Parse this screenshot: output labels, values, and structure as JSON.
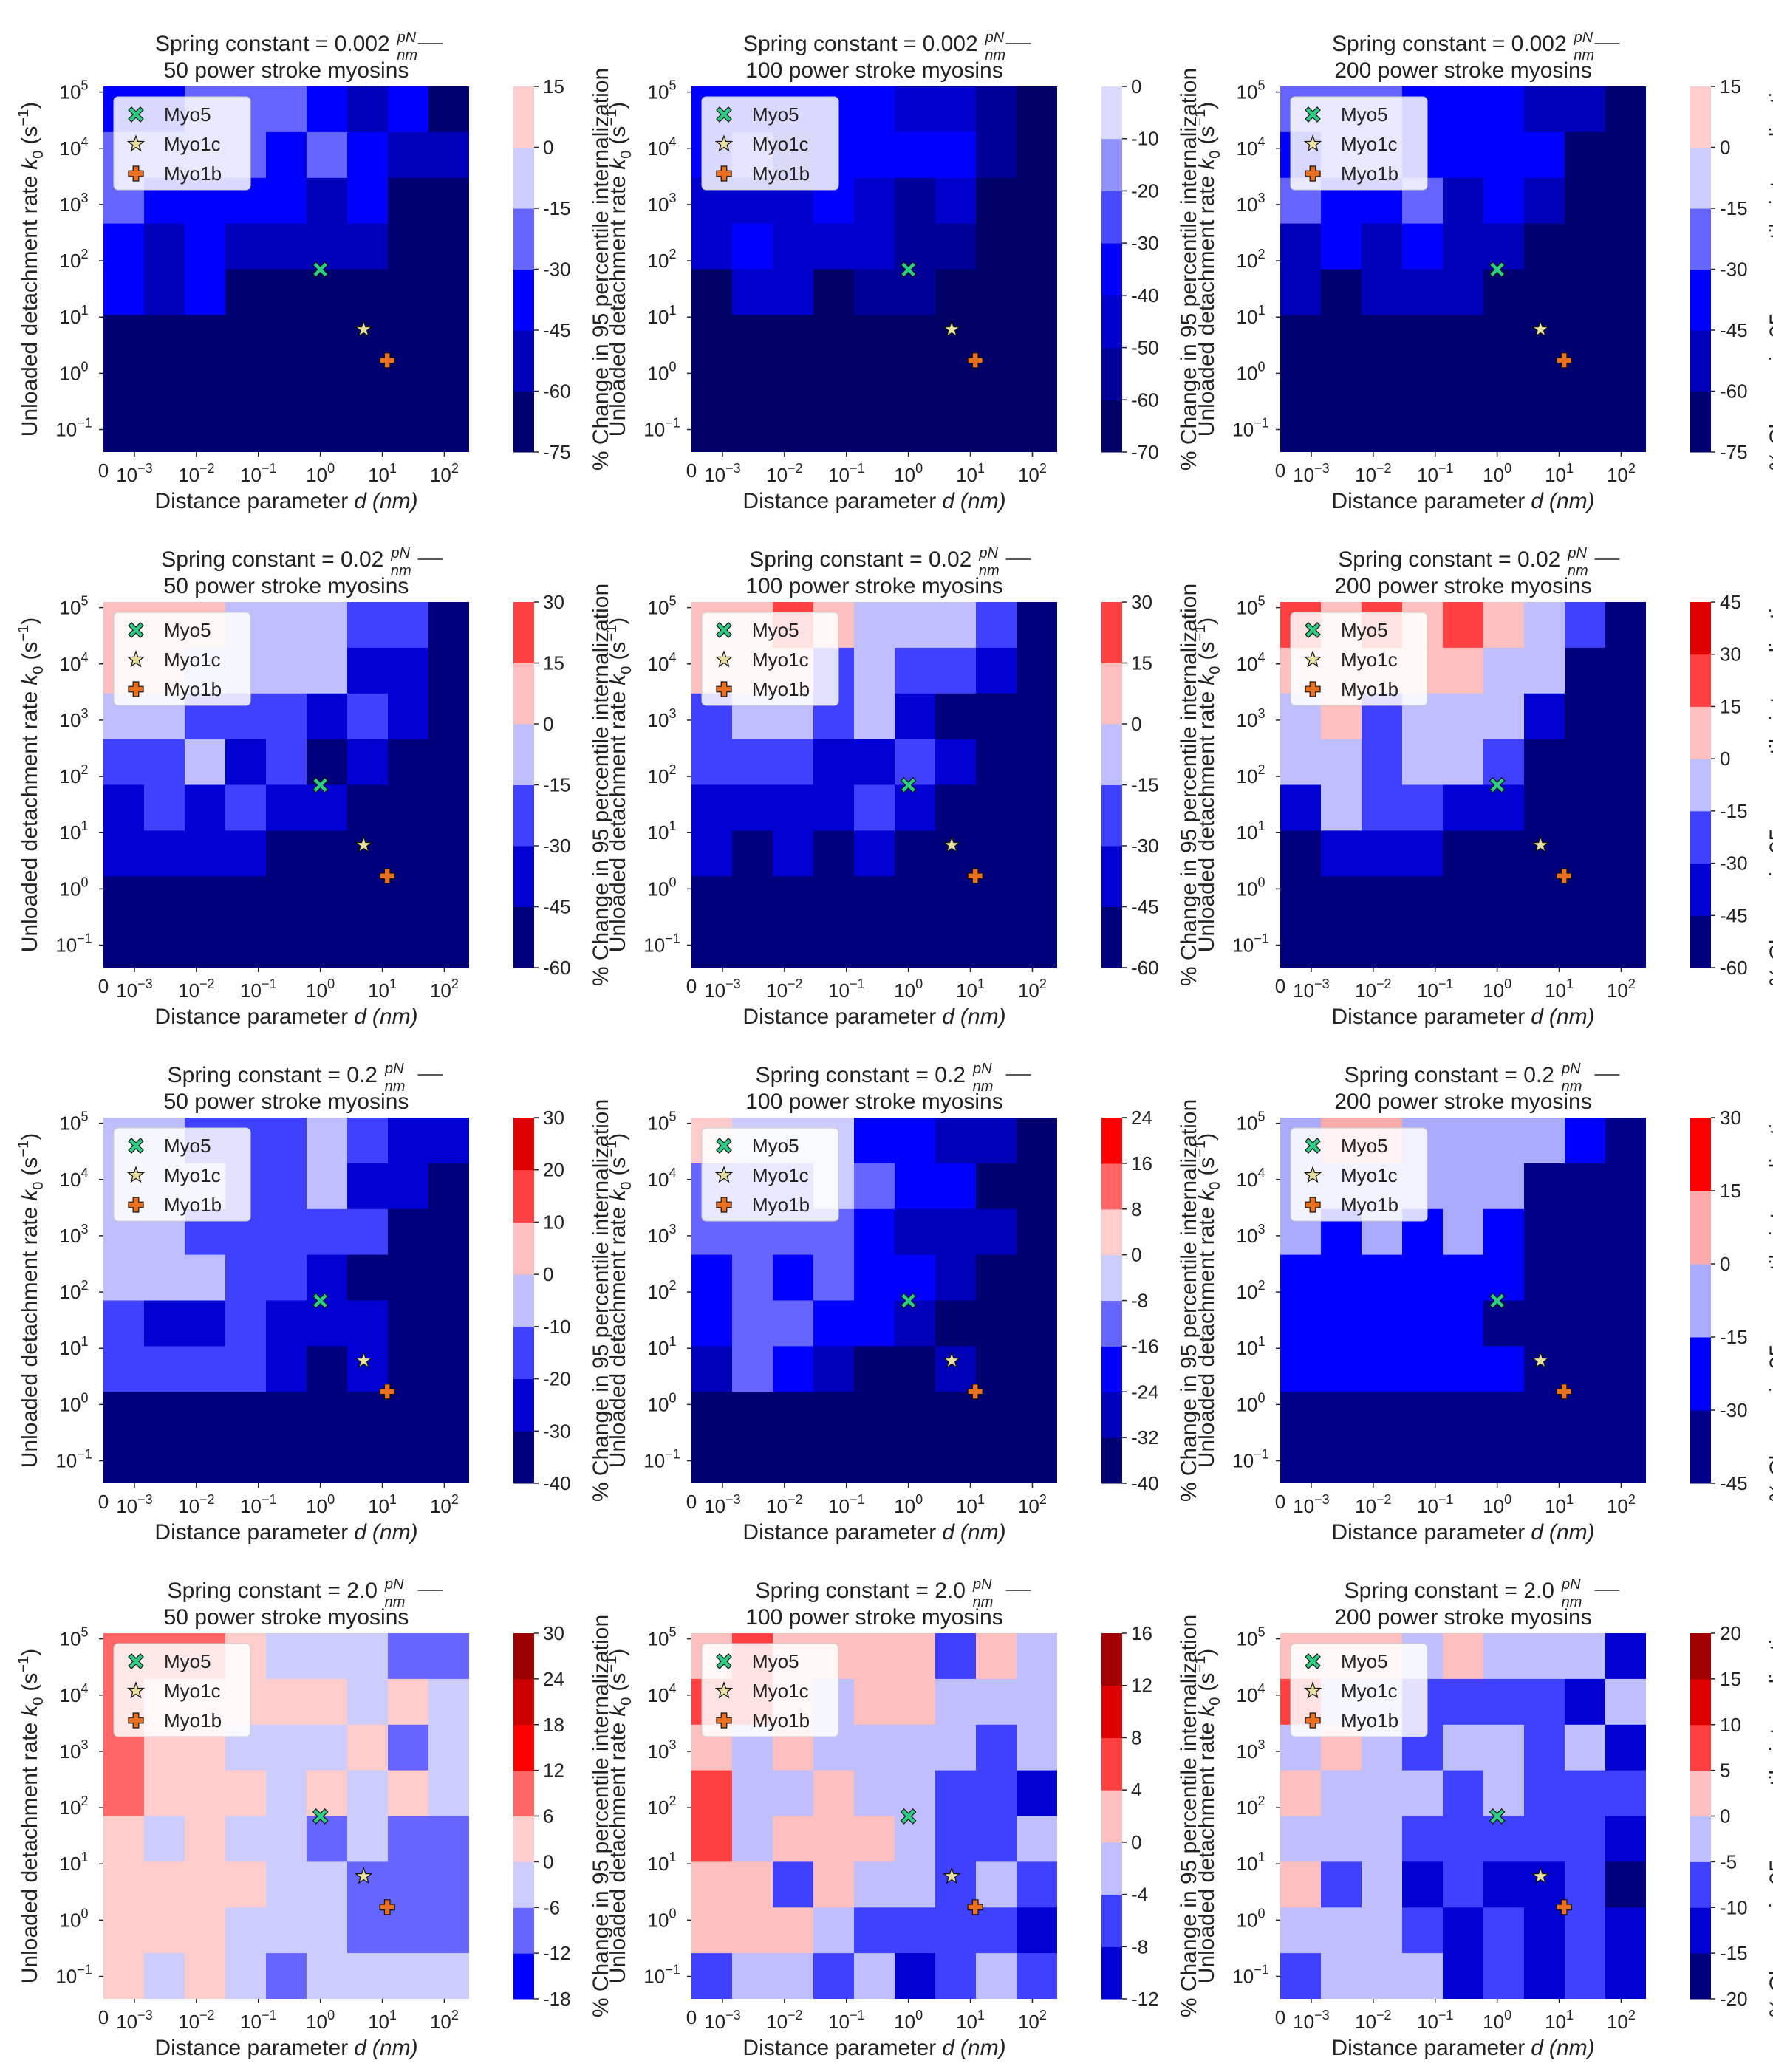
{
  "shared": {
    "xlabel": "Distance parameter",
    "xlabel_symbol": "d",
    "xlabel_unit": "(nm)",
    "ylabel": "Unloaded detachment rate",
    "ylabel_symbol": "k",
    "ylabel_sub": "0",
    "ylabel_unit": "(s",
    "ylabel_unit_sup": "−1",
    "ylabel_unit_close": ")",
    "colorbar_label": "% Change in 95 percentile internalization",
    "title_prefix": "Spring constant = ",
    "title_units_num": "pN",
    "title_units_den": "nm",
    "xzero_label": "0",
    "xticks": [
      {
        "value": 0.001,
        "base": "10",
        "exp": "−3"
      },
      {
        "value": 0.01,
        "base": "10",
        "exp": "−2"
      },
      {
        "value": 0.1,
        "base": "10",
        "exp": "−1"
      },
      {
        "value": 1,
        "base": "10",
        "exp": "0"
      },
      {
        "value": 10,
        "base": "10",
        "exp": "1"
      },
      {
        "value": 100,
        "base": "10",
        "exp": "2"
      }
    ],
    "yticks": [
      {
        "value": 0.1,
        "base": "10",
        "exp": "−1"
      },
      {
        "value": 1,
        "base": "10",
        "exp": "0"
      },
      {
        "value": 10,
        "base": "10",
        "exp": "1"
      },
      {
        "value": 100,
        "base": "10",
        "exp": "2"
      },
      {
        "value": 1000,
        "base": "10",
        "exp": "3"
      },
      {
        "value": 10000,
        "base": "10",
        "exp": "4"
      },
      {
        "value": 100000,
        "base": "10",
        "exp": "5"
      }
    ],
    "legend": [
      {
        "name": "Myo5",
        "marker": "x",
        "color": "#2ecc85"
      },
      {
        "name": "Myo1c",
        "marker": "star",
        "color": "#e8e0a0"
      },
      {
        "name": "Myo1b",
        "marker": "plus",
        "color": "#e87020"
      }
    ],
    "colors": {
      "red": "#ff0000",
      "blue": "#0000ff",
      "white": "#ffffff"
    }
  },
  "chart_data": [
    {
      "type": "heatmap",
      "spring_constant": "0.002",
      "subtitle": "50 power stroke myosins",
      "levels": [
        15,
        0,
        -15,
        -30,
        -45,
        -60,
        -75
      ],
      "colorbar_range": [
        -75,
        15
      ],
      "markers": [
        {
          "name": "Myo5",
          "d": 1,
          "k0": 70
        },
        {
          "name": "Myo1c",
          "d": 5,
          "k0": 6
        },
        {
          "name": "Myo1b",
          "d": 12,
          "k0": 1.7
        }
      ]
    },
    {
      "type": "heatmap",
      "spring_constant": "0.002",
      "subtitle": "100 power stroke myosins",
      "levels": [
        0,
        -10,
        -20,
        -30,
        -40,
        -50,
        -60,
        -70
      ],
      "colorbar_range": [
        -70,
        0
      ],
      "markers": [
        {
          "name": "Myo5",
          "d": 1,
          "k0": 70
        },
        {
          "name": "Myo1c",
          "d": 5,
          "k0": 6
        },
        {
          "name": "Myo1b",
          "d": 12,
          "k0": 1.7
        }
      ]
    },
    {
      "type": "heatmap",
      "spring_constant": "0.002",
      "subtitle": "200 power stroke myosins",
      "levels": [
        15,
        0,
        -15,
        -30,
        -45,
        -60,
        -75
      ],
      "colorbar_range": [
        -75,
        15
      ],
      "markers": [
        {
          "name": "Myo5",
          "d": 1,
          "k0": 70
        },
        {
          "name": "Myo1c",
          "d": 5,
          "k0": 6
        },
        {
          "name": "Myo1b",
          "d": 12,
          "k0": 1.7
        }
      ]
    },
    {
      "type": "heatmap",
      "spring_constant": "0.02",
      "subtitle": "50 power stroke myosins",
      "levels": [
        30,
        15,
        0,
        -15,
        -30,
        -45,
        -60
      ],
      "colorbar_range": [
        -60,
        30
      ],
      "markers": [
        {
          "name": "Myo5",
          "d": 1,
          "k0": 70
        },
        {
          "name": "Myo1c",
          "d": 5,
          "k0": 6
        },
        {
          "name": "Myo1b",
          "d": 12,
          "k0": 1.7
        }
      ]
    },
    {
      "type": "heatmap",
      "spring_constant": "0.02",
      "subtitle": "100 power stroke myosins",
      "levels": [
        30,
        15,
        0,
        -15,
        -30,
        -45,
        -60
      ],
      "colorbar_range": [
        -60,
        30
      ],
      "markers": [
        {
          "name": "Myo5",
          "d": 1,
          "k0": 70
        },
        {
          "name": "Myo1c",
          "d": 5,
          "k0": 6
        },
        {
          "name": "Myo1b",
          "d": 12,
          "k0": 1.7
        }
      ]
    },
    {
      "type": "heatmap",
      "spring_constant": "0.02",
      "subtitle": "200 power stroke myosins",
      "levels": [
        45,
        30,
        15,
        0,
        -15,
        -30,
        -45,
        -60
      ],
      "colorbar_range": [
        -60,
        45
      ],
      "markers": [
        {
          "name": "Myo5",
          "d": 1,
          "k0": 70
        },
        {
          "name": "Myo1c",
          "d": 5,
          "k0": 6
        },
        {
          "name": "Myo1b",
          "d": 12,
          "k0": 1.7
        }
      ]
    },
    {
      "type": "heatmap",
      "spring_constant": "0.2",
      "subtitle": "50 power stroke myosins",
      "levels": [
        30,
        20,
        10,
        0,
        -10,
        -20,
        -30,
        -40
      ],
      "colorbar_range": [
        -40,
        30
      ],
      "markers": [
        {
          "name": "Myo5",
          "d": 1,
          "k0": 70
        },
        {
          "name": "Myo1c",
          "d": 5,
          "k0": 6
        },
        {
          "name": "Myo1b",
          "d": 12,
          "k0": 1.7
        }
      ]
    },
    {
      "type": "heatmap",
      "spring_constant": "0.2",
      "subtitle": "100 power stroke myosins",
      "levels": [
        24,
        16,
        8,
        0,
        -8,
        -16,
        -24,
        -32,
        -40
      ],
      "colorbar_range": [
        -40,
        24
      ],
      "markers": [
        {
          "name": "Myo5",
          "d": 1,
          "k0": 70
        },
        {
          "name": "Myo1c",
          "d": 5,
          "k0": 6
        },
        {
          "name": "Myo1b",
          "d": 12,
          "k0": 1.7
        }
      ]
    },
    {
      "type": "heatmap",
      "spring_constant": "0.2",
      "subtitle": "200 power stroke myosins",
      "levels": [
        30,
        15,
        0,
        -15,
        -30,
        -45
      ],
      "colorbar_range": [
        -45,
        30
      ],
      "markers": [
        {
          "name": "Myo5",
          "d": 1,
          "k0": 70
        },
        {
          "name": "Myo1c",
          "d": 5,
          "k0": 6
        },
        {
          "name": "Myo1b",
          "d": 12,
          "k0": 1.7
        }
      ]
    },
    {
      "type": "heatmap",
      "spring_constant": "2.0",
      "subtitle": "50 power stroke myosins",
      "levels": [
        30,
        24,
        18,
        12,
        6,
        0,
        -6,
        -12,
        -18
      ],
      "colorbar_range": [
        -18,
        30
      ],
      "markers": [
        {
          "name": "Myo5",
          "d": 1,
          "k0": 70
        },
        {
          "name": "Myo1c",
          "d": 5,
          "k0": 6
        },
        {
          "name": "Myo1b",
          "d": 12,
          "k0": 1.7
        }
      ]
    },
    {
      "type": "heatmap",
      "spring_constant": "2.0",
      "subtitle": "100 power stroke myosins",
      "levels": [
        16,
        12,
        8,
        4,
        0,
        -4,
        -8,
        -12
      ],
      "colorbar_range": [
        -12,
        16
      ],
      "markers": [
        {
          "name": "Myo5",
          "d": 1,
          "k0": 70
        },
        {
          "name": "Myo1c",
          "d": 5,
          "k0": 6
        },
        {
          "name": "Myo1b",
          "d": 12,
          "k0": 1.7
        }
      ]
    },
    {
      "type": "heatmap",
      "spring_constant": "2.0",
      "subtitle": "200 power stroke myosins",
      "levels": [
        20,
        15,
        10,
        5,
        0,
        -5,
        -10,
        -15,
        -20
      ],
      "colorbar_range": [
        -20,
        20
      ],
      "markers": [
        {
          "name": "Myo5",
          "d": 1,
          "k0": 70
        },
        {
          "name": "Myo1c",
          "d": 5,
          "k0": 6
        },
        {
          "name": "Myo1b",
          "d": 12,
          "k0": 1.7
        }
      ]
    }
  ]
}
